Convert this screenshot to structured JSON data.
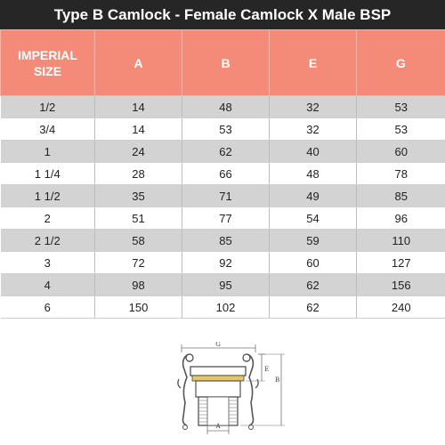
{
  "title": "Type B Camlock - Female Camlock X Male BSP",
  "headers": [
    "IMPERIAL SIZE",
    "A",
    "B",
    "E",
    "G"
  ],
  "rows": [
    [
      "1/2",
      "14",
      "48",
      "32",
      "53"
    ],
    [
      "3/4",
      "14",
      "53",
      "32",
      "53"
    ],
    [
      "1",
      "24",
      "62",
      "40",
      "60"
    ],
    [
      "1 1/4",
      "28",
      "66",
      "48",
      "78"
    ],
    [
      "1 1/2",
      "35",
      "71",
      "49",
      "85"
    ],
    [
      "2",
      "51",
      "77",
      "54",
      "96"
    ],
    [
      "2 1/2",
      "58",
      "85",
      "59",
      "110"
    ],
    [
      "3",
      "72",
      "92",
      "60",
      "127"
    ],
    [
      "4",
      "98",
      "95",
      "62",
      "156"
    ],
    [
      "6",
      "150",
      "102",
      "62",
      "240"
    ]
  ],
  "diagram": {
    "labels": {
      "G": "G",
      "E": "E",
      "B": "B",
      "A": "A"
    }
  },
  "colors": {
    "title_bg": "#262626",
    "header_bg": "#f38b78",
    "row_alt": "#d3d3d3"
  }
}
